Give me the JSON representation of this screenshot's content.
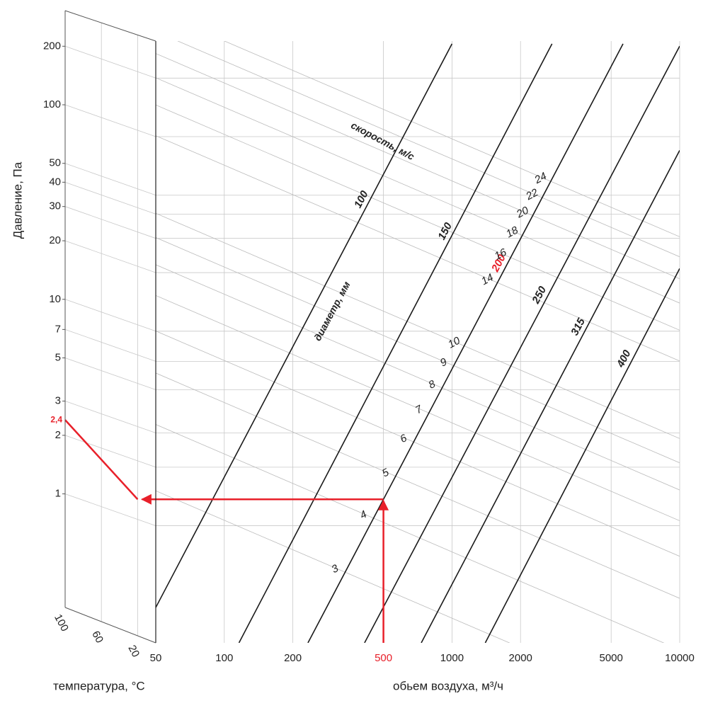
{
  "chart_data": {
    "type": "nomogram",
    "y_label": "Давление, Па",
    "x_label": "обьем воздуха, м³/ч",
    "temperature_label": "температура, °C",
    "velocity_label": "скорость, м/с",
    "diameter_label": "диаметр, мм",
    "x_log": true,
    "y_log": true,
    "xlim": [
      50,
      10000
    ],
    "xticks": [
      50,
      100,
      200,
      500,
      1000,
      2000,
      5000,
      10000
    ],
    "ylim": [
      0.25,
      310
    ],
    "yticks": [
      1,
      2,
      3,
      5,
      7,
      10,
      20,
      30,
      40,
      50,
      100,
      200
    ],
    "temperature_lim": [
      100,
      0
    ],
    "temperature_ticks": [
      100,
      60,
      20
    ],
    "grid": true,
    "line_color": "#1a1a1a",
    "grid_color": "#c8c8c8",
    "diameters": [
      {
        "diameter": 100,
        "flow": [
          50,
          1000
        ],
        "pressure": [
          0.38,
          300
        ]
      },
      {
        "diameter": 150,
        "flow": [
          116,
          2750
        ],
        "pressure": [
          0.25,
          300
        ]
      },
      {
        "diameter": 200,
        "flow": [
          233,
          5640
        ],
        "pressure": [
          0.25,
          300
        ]
      },
      {
        "diameter": 250,
        "flow": [
          413,
          10000
        ],
        "pressure": [
          0.25,
          292
        ]
      },
      {
        "diameter": 315,
        "flow": [
          733,
          10000
        ],
        "pressure": [
          0.25,
          85
        ]
      },
      {
        "diameter": 400,
        "flow": [
          1400,
          10000
        ],
        "pressure": [
          0.25,
          21
        ]
      }
    ],
    "velocities": {
      "diameter": 200,
      "values": [
        3,
        4,
        5,
        6,
        7,
        8,
        9,
        10,
        14,
        16,
        18,
        20,
        22,
        24
      ]
    },
    "example": {
      "flow": 500,
      "diameter": 200,
      "temperature": 20,
      "result": {
        "value": 2.4,
        "label": "2,4"
      },
      "color": "#e8202a"
    }
  }
}
